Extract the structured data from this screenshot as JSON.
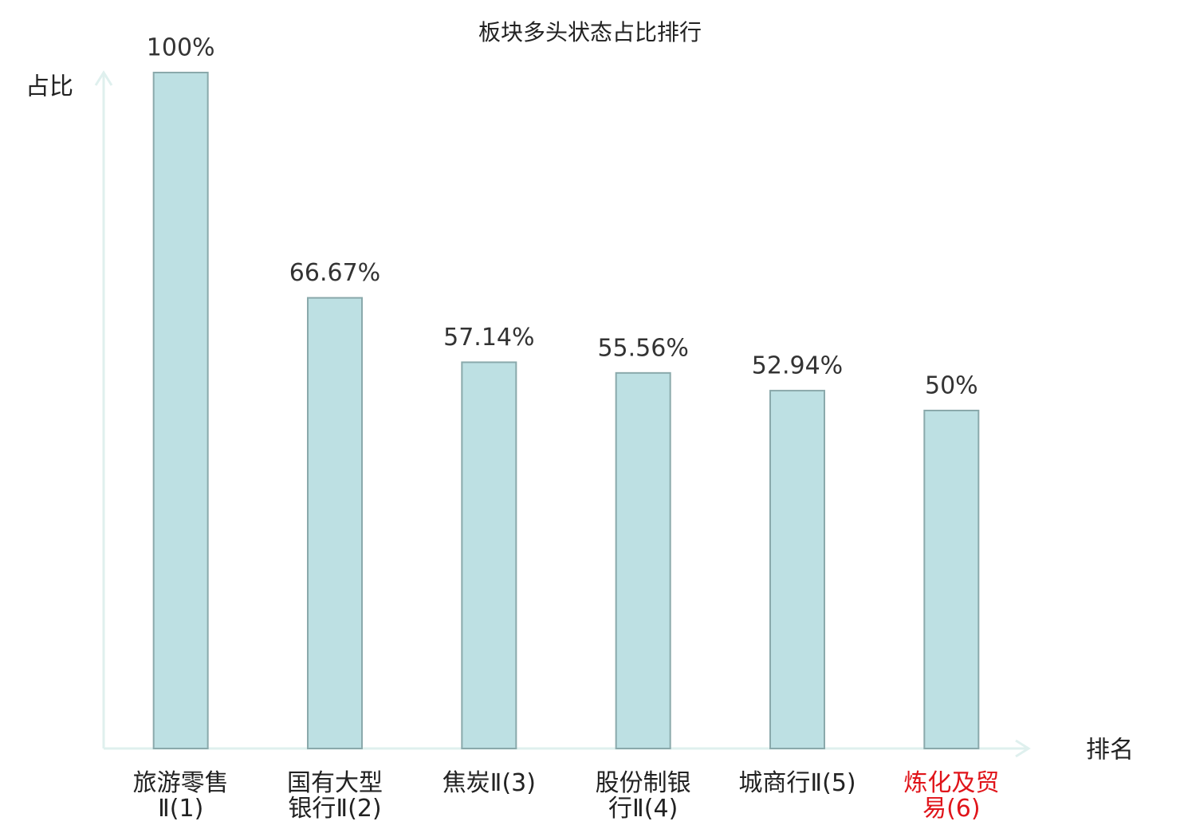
{
  "chart_data": {
    "type": "bar",
    "title": "板块多头状态占比排行",
    "y_label": "占比",
    "x_label": "排名",
    "categories": [
      "旅游零售Ⅱ(1)",
      "国有大型银行Ⅱ(2)",
      "焦炭Ⅱ(3)",
      "股份制银行Ⅱ(4)",
      "城商行Ⅱ(5)",
      "炼化及贸易(6)"
    ],
    "values": [
      100,
      66.67,
      57.14,
      55.56,
      52.94,
      50
    ],
    "value_labels": [
      "100%",
      "66.67%",
      "57.14%",
      "55.56%",
      "52.94%",
      "50%"
    ],
    "color": "#bde0e3",
    "edge_color": "#8aa9ab",
    "axis_color": "#dff0ee",
    "highlight_category": 5,
    "highlight_color": "#e0141a",
    "ylim": [
      0,
      100
    ]
  }
}
